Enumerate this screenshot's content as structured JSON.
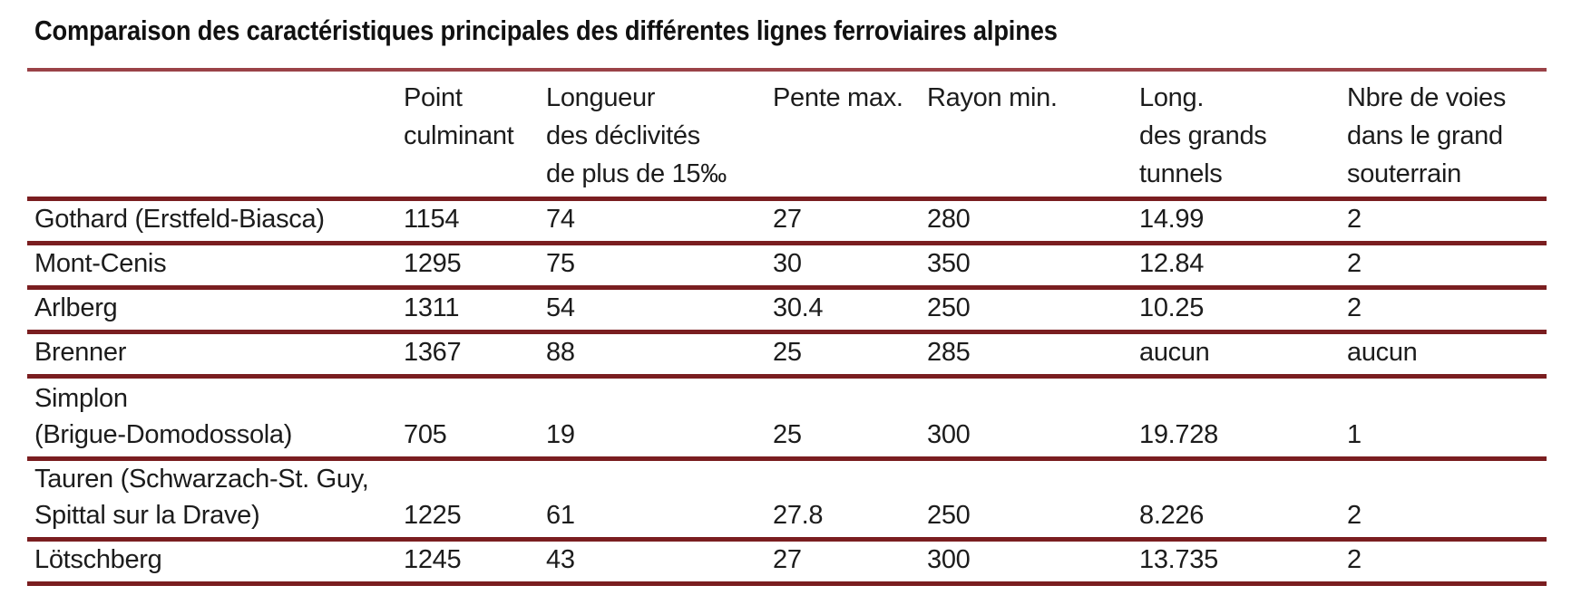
{
  "title": "Comparaison des caractéristiques principales des différentes lignes ferroviaires alpines",
  "colors": {
    "rule_dark": "#7a1e20",
    "rule_top": "#9a4247",
    "text": "#1c1c1c",
    "background": "#ffffff"
  },
  "table": {
    "headers": [
      "",
      "Point\nculminant",
      "Longueur\ndes déclivités\nde plus de 15‰",
      "Pente max.",
      "Rayon min.",
      "Long.\ndes grands\ntunnels",
      "Nbre de voies\ndans le grand\nsouterrain"
    ],
    "rows": [
      {
        "cells": [
          "Gothard (Erstfeld-Biasca)",
          "1154",
          "74",
          "27",
          "280",
          "14.99",
          "2"
        ]
      },
      {
        "cells": [
          "Mont-Cenis",
          "1295",
          "75",
          "30",
          "350",
          "12.84",
          "2"
        ]
      },
      {
        "cells": [
          "Arlberg",
          "1311",
          "54",
          "30.4",
          "250",
          "10.25",
          "2"
        ]
      },
      {
        "cells": [
          "Brenner",
          "1367",
          "88",
          "25",
          "285",
          "aucun",
          "aucun"
        ]
      },
      {
        "cells": [
          "Simplon\n(Brigue-Domodossola)",
          "705",
          "19",
          "25",
          "300",
          "19.728",
          "1"
        ]
      },
      {
        "cells": [
          "Tauren (Schwarzach-St. Guy,\nSpittal sur la Drave)",
          "1225",
          "61",
          "27.8",
          "250",
          "8.226",
          "2"
        ]
      },
      {
        "cells": [
          "Lötschberg",
          "1245",
          "43",
          "27",
          "300",
          "13.735",
          "2"
        ]
      }
    ]
  }
}
